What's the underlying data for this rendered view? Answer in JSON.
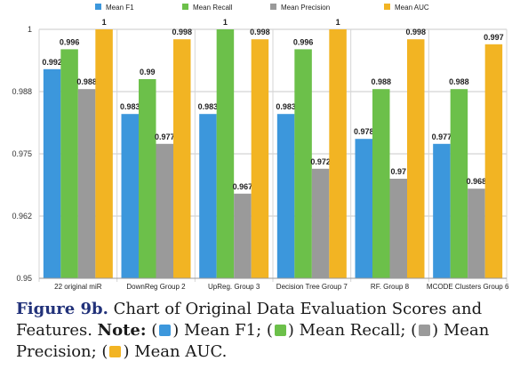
{
  "chart_data": {
    "type": "bar",
    "categories": [
      "22 original miR",
      "DownReg Group 2",
      "UpReg. Group 3",
      "Decision Tree Group 7",
      "RF. Group 8",
      "MCODE Clusters Group 6"
    ],
    "series": [
      {
        "name": "Mean F1",
        "color": "#3c97dc",
        "values": [
          0.992,
          0.983,
          0.983,
          0.983,
          0.978,
          0.977
        ],
        "labels": [
          "0.992",
          "0.983",
          "0.983",
          "0.983",
          "0.978",
          "0.977"
        ]
      },
      {
        "name": "Mean Recall",
        "color": "#6cc04a",
        "values": [
          0.996,
          0.99,
          1,
          0.996,
          0.988,
          0.988
        ],
        "labels": [
          "0.996",
          "0.99",
          "1",
          "0.996",
          "0.988",
          "0.988"
        ]
      },
      {
        "name": "Mean Precision",
        "color": "#9a9a9a",
        "values": [
          0.988,
          0.977,
          0.967,
          0.972,
          0.97,
          0.968
        ],
        "labels": [
          "0.988",
          "0.977",
          "0.967",
          "0.972",
          "0.97",
          "0.968"
        ]
      },
      {
        "name": "Mean AUC",
        "color": "#f2b423",
        "values": [
          1,
          0.998,
          0.998,
          1,
          0.998,
          0.997
        ],
        "labels": [
          "1",
          "0.998",
          "0.998",
          "1",
          "0.998",
          "0.997"
        ]
      }
    ],
    "yticks": [
      "0.95",
      "0.962",
      "0.975",
      "0.988",
      "1"
    ],
    "ytick_values": [
      0.95,
      0.9625,
      0.975,
      0.9875,
      1
    ],
    "ylim": [
      0.95,
      1
    ],
    "grid": true,
    "legend": "top-center"
  },
  "caption": {
    "label": "Figure 9b.",
    "text": " Chart of Original Data Evaluation Scores and Features. ",
    "note_label": "Note:",
    "items": [
      {
        "color": "#3c97dc",
        "text": "Mean F1;"
      },
      {
        "color": "#6cc04a",
        "text": "Mean Recall;"
      },
      {
        "color": "#9a9a9a",
        "text": "Mean Precision;"
      },
      {
        "color": "#f2b423",
        "text": "Mean AUC."
      }
    ]
  }
}
